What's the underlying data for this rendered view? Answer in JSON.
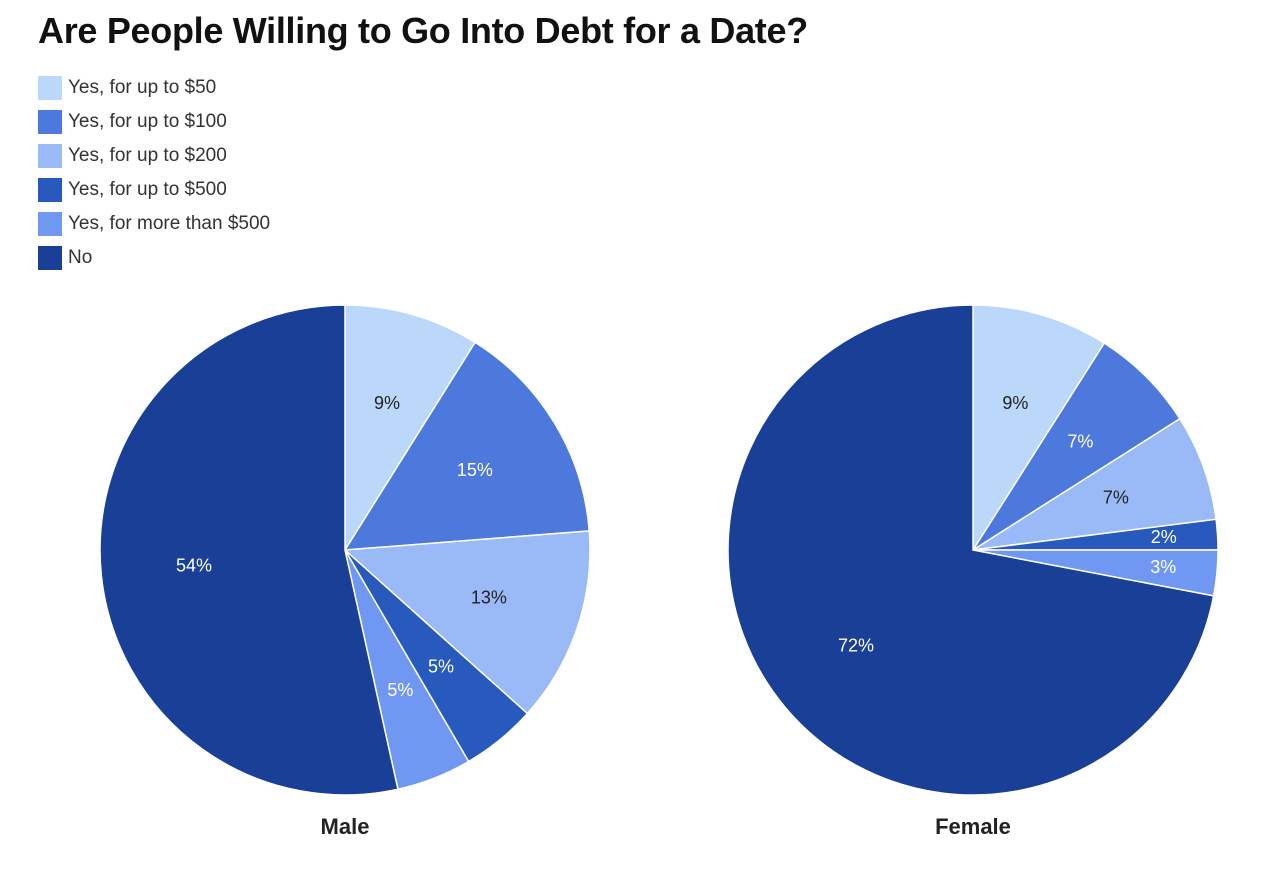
{
  "title": "Are People Willing to Go Into Debt for a Date?",
  "legend": [
    {
      "label": "Yes, for up to $50",
      "color": "#bbd8fb"
    },
    {
      "label": "Yes, for up to $100",
      "color": "#4e79dc"
    },
    {
      "label": "Yes, for up to $200",
      "color": "#99b9f7"
    },
    {
      "label": "Yes, for up to $500",
      "color": "#2859bd"
    },
    {
      "label": "Yes, for more than $500",
      "color": "#7098f2"
    },
    {
      "label": "No",
      "color": "#1a3f97"
    }
  ],
  "chart_data": [
    {
      "type": "pie",
      "title": "Male",
      "categories": [
        "Yes, for up to $50",
        "Yes, for up to $100",
        "Yes, for up to $200",
        "Yes, for up to $500",
        "Yes, for more than $500",
        "No"
      ],
      "values": [
        9,
        15,
        13,
        5,
        5,
        54
      ],
      "labels": [
        "9%",
        "15%",
        "13%",
        "5%",
        "5%",
        "54%"
      ],
      "label_colors": [
        "#222222",
        "#ffffff",
        "#222222",
        "#ffffff",
        "#ffffff",
        "#ffffff"
      ]
    },
    {
      "type": "pie",
      "title": "Female",
      "categories": [
        "Yes, for up to $50",
        "Yes, for up to $100",
        "Yes, for up to $200",
        "Yes, for up to $500",
        "Yes, for more than $500",
        "No"
      ],
      "values": [
        9,
        7,
        7,
        2,
        3,
        72
      ],
      "labels": [
        "9%",
        "7%",
        "7%",
        "2%",
        "3%",
        "72%"
      ],
      "label_colors": [
        "#222222",
        "#ffffff",
        "#222222",
        "#ffffff",
        "#ffffff",
        "#ffffff"
      ]
    }
  ]
}
